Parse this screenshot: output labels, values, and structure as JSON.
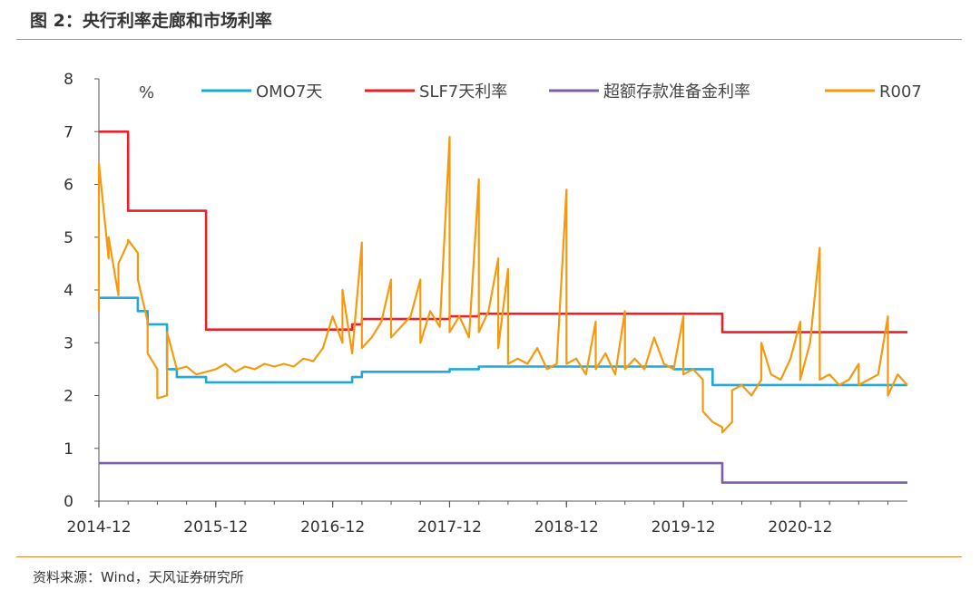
{
  "figure": {
    "title": "图 2：央行利率走廊和市场利率",
    "source": "资料来源：Wind，天风证券研究所"
  },
  "colors": {
    "accent_rule": "#e38a2c",
    "axis": "#555555"
  },
  "chart_data": {
    "type": "line",
    "title": "",
    "xlabel": "",
    "ylabel": "%",
    "ylim": [
      0,
      8
    ],
    "yticks": [
      "0",
      "1",
      "2",
      "3",
      "4",
      "5",
      "6",
      "7",
      "8"
    ],
    "xlim": [
      "2014-12",
      "2021-11"
    ],
    "xticks": [
      "2014-12",
      "2015-12",
      "2016-12",
      "2017-12",
      "2018-12",
      "2019-12",
      "2020-12"
    ],
    "grid": false,
    "legend": "top",
    "series": [
      {
        "name": "OMO7天",
        "color": "#1fa8d8",
        "step": true,
        "points": [
          [
            "2014-12",
            3.85
          ],
          [
            "2015-03",
            3.85
          ],
          [
            "2015-04",
            3.6
          ],
          [
            "2015-05",
            3.35
          ],
          [
            "2015-07",
            3.35
          ],
          [
            "2015-07",
            2.5
          ],
          [
            "2015-08",
            2.35
          ],
          [
            "2015-11",
            2.25
          ],
          [
            "2016-11",
            2.25
          ],
          [
            "2017-02",
            2.35
          ],
          [
            "2017-03",
            2.45
          ],
          [
            "2017-12",
            2.5
          ],
          [
            "2018-03",
            2.55
          ],
          [
            "2019-11",
            2.5
          ],
          [
            "2020-03",
            2.4
          ],
          [
            "2020-03",
            2.2
          ],
          [
            "2021-11",
            2.2
          ]
        ]
      },
      {
        "name": "SLF7天利率",
        "color": "#e8202a",
        "step": true,
        "points": [
          [
            "2014-12",
            7.0
          ],
          [
            "2015-03",
            7.0
          ],
          [
            "2015-03",
            5.5
          ],
          [
            "2015-11",
            5.5
          ],
          [
            "2015-11",
            3.25
          ],
          [
            "2017-02",
            3.35
          ],
          [
            "2017-03",
            3.45
          ],
          [
            "2017-12",
            3.5
          ],
          [
            "2018-03",
            3.55
          ],
          [
            "2020-04",
            3.55
          ],
          [
            "2020-04",
            3.2
          ],
          [
            "2021-11",
            3.2
          ]
        ]
      },
      {
        "name": "超额存款准备金利率",
        "color": "#7b5ea7",
        "step": true,
        "points": [
          [
            "2014-12",
            0.72
          ],
          [
            "2020-04",
            0.72
          ],
          [
            "2020-04",
            0.35
          ],
          [
            "2021-11",
            0.35
          ]
        ]
      },
      {
        "name": "R007",
        "color": "#f59a0f",
        "step": false,
        "points": [
          [
            "2014-12",
            3.6
          ],
          [
            "2014-12",
            6.4
          ],
          [
            "2015-01",
            4.6
          ],
          [
            "2015-01",
            5.0
          ],
          [
            "2015-02",
            3.9
          ],
          [
            "2015-02",
            4.5
          ],
          [
            "2015-03",
            4.9
          ],
          [
            "2015-03",
            4.95
          ],
          [
            "2015-04",
            4.7
          ],
          [
            "2015-04",
            4.2
          ],
          [
            "2015-05",
            3.4
          ],
          [
            "2015-05",
            2.8
          ],
          [
            "2015-06",
            2.5
          ],
          [
            "2015-06",
            1.95
          ],
          [
            "2015-07",
            2.0
          ],
          [
            "2015-07",
            3.2
          ],
          [
            "2015-08",
            2.5
          ],
          [
            "2015-09",
            2.55
          ],
          [
            "2015-10",
            2.4
          ],
          [
            "2015-11",
            2.45
          ],
          [
            "2015-12",
            2.5
          ],
          [
            "2016-01",
            2.6
          ],
          [
            "2016-02",
            2.45
          ],
          [
            "2016-03",
            2.55
          ],
          [
            "2016-04",
            2.5
          ],
          [
            "2016-05",
            2.6
          ],
          [
            "2016-06",
            2.55
          ],
          [
            "2016-07",
            2.6
          ],
          [
            "2016-08",
            2.55
          ],
          [
            "2016-09",
            2.7
          ],
          [
            "2016-10",
            2.65
          ],
          [
            "2016-11",
            2.9
          ],
          [
            "2016-12",
            3.5
          ],
          [
            "2017-01",
            3.0
          ],
          [
            "2017-01",
            4.0
          ],
          [
            "2017-02",
            2.8
          ],
          [
            "2017-03",
            4.9
          ],
          [
            "2017-03",
            2.9
          ],
          [
            "2017-04",
            3.1
          ],
          [
            "2017-05",
            3.4
          ],
          [
            "2017-06",
            4.2
          ],
          [
            "2017-06",
            3.1
          ],
          [
            "2017-07",
            3.3
          ],
          [
            "2017-08",
            3.5
          ],
          [
            "2017-09",
            4.2
          ],
          [
            "2017-09",
            3.0
          ],
          [
            "2017-10",
            3.6
          ],
          [
            "2017-11",
            3.3
          ],
          [
            "2017-12",
            6.9
          ],
          [
            "2017-12",
            3.2
          ],
          [
            "2018-01",
            3.5
          ],
          [
            "2018-02",
            3.1
          ],
          [
            "2018-03",
            6.1
          ],
          [
            "2018-03",
            3.2
          ],
          [
            "2018-04",
            3.6
          ],
          [
            "2018-05",
            4.6
          ],
          [
            "2018-05",
            2.9
          ],
          [
            "2018-06",
            4.4
          ],
          [
            "2018-06",
            2.6
          ],
          [
            "2018-07",
            2.7
          ],
          [
            "2018-08",
            2.6
          ],
          [
            "2018-09",
            2.9
          ],
          [
            "2018-10",
            2.5
          ],
          [
            "2018-11",
            2.6
          ],
          [
            "2018-12",
            5.9
          ],
          [
            "2018-12",
            2.6
          ],
          [
            "2019-01",
            2.7
          ],
          [
            "2019-02",
            2.4
          ],
          [
            "2019-03",
            3.4
          ],
          [
            "2019-03",
            2.5
          ],
          [
            "2019-04",
            2.8
          ],
          [
            "2019-05",
            2.4
          ],
          [
            "2019-06",
            3.6
          ],
          [
            "2019-06",
            2.5
          ],
          [
            "2019-07",
            2.7
          ],
          [
            "2019-08",
            2.5
          ],
          [
            "2019-09",
            3.1
          ],
          [
            "2019-10",
            2.6
          ],
          [
            "2019-11",
            2.5
          ],
          [
            "2019-12",
            3.5
          ],
          [
            "2019-12",
            2.4
          ],
          [
            "2020-01",
            2.5
          ],
          [
            "2020-02",
            2.3
          ],
          [
            "2020-02",
            1.7
          ],
          [
            "2020-03",
            1.5
          ],
          [
            "2020-04",
            1.4
          ],
          [
            "2020-04",
            1.3
          ],
          [
            "2020-05",
            1.5
          ],
          [
            "2020-05",
            2.1
          ],
          [
            "2020-06",
            2.2
          ],
          [
            "2020-07",
            2.0
          ],
          [
            "2020-08",
            2.3
          ],
          [
            "2020-08",
            3.0
          ],
          [
            "2020-09",
            2.4
          ],
          [
            "2020-10",
            2.3
          ],
          [
            "2020-11",
            2.7
          ],
          [
            "2020-12",
            3.4
          ],
          [
            "2020-12",
            2.3
          ],
          [
            "2021-01",
            3.0
          ],
          [
            "2021-02",
            4.8
          ],
          [
            "2021-02",
            2.3
          ],
          [
            "2021-03",
            2.4
          ],
          [
            "2021-04",
            2.2
          ],
          [
            "2021-05",
            2.3
          ],
          [
            "2021-06",
            2.6
          ],
          [
            "2021-06",
            2.2
          ],
          [
            "2021-07",
            2.3
          ],
          [
            "2021-08",
            2.4
          ],
          [
            "2021-09",
            3.5
          ],
          [
            "2021-09",
            2.0
          ],
          [
            "2021-10",
            2.4
          ],
          [
            "2021-11",
            2.2
          ]
        ]
      }
    ]
  }
}
